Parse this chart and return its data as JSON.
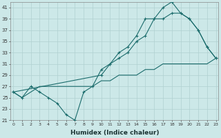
{
  "xlabel": "Humidex (Indice chaleur)",
  "background_color": "#cce8e8",
  "grid_color": "#b0d0d0",
  "line_color": "#1a6b6b",
  "xlim": [
    0,
    23
  ],
  "ylim": [
    21,
    42
  ],
  "xticks": [
    0,
    1,
    2,
    3,
    4,
    5,
    6,
    7,
    8,
    9,
    10,
    11,
    12,
    13,
    14,
    15,
    16,
    17,
    18,
    19,
    20,
    21,
    22,
    23
  ],
  "yticks": [
    21,
    23,
    25,
    27,
    29,
    31,
    33,
    35,
    37,
    39,
    41
  ],
  "curve_wavy_x": [
    0,
    1,
    2,
    3,
    4,
    5,
    6,
    7,
    8,
    9,
    10,
    11,
    12,
    13,
    14,
    15,
    16,
    17,
    18,
    19,
    20,
    21,
    22,
    23
  ],
  "curve_wavy_y": [
    26,
    25,
    27,
    26,
    25,
    24,
    22,
    21,
    26,
    27,
    30,
    31,
    33,
    34,
    36,
    39,
    39,
    41,
    42,
    40,
    39,
    37,
    34,
    32
  ],
  "curve_smooth_x": [
    0,
    10,
    11,
    12,
    13,
    14,
    15,
    16,
    17,
    18,
    19,
    20,
    21,
    22,
    23
  ],
  "curve_smooth_y": [
    26,
    29,
    31,
    32,
    33,
    35,
    36,
    39,
    39,
    40,
    40,
    39,
    37,
    34,
    32
  ],
  "curve_line_x": [
    0,
    1,
    2,
    3,
    4,
    5,
    6,
    7,
    8,
    9,
    10,
    11,
    12,
    13,
    14,
    15,
    16,
    17,
    18,
    19,
    20,
    21,
    22,
    23
  ],
  "curve_line_y": [
    26,
    25,
    26,
    27,
    27,
    27,
    27,
    27,
    27,
    27,
    28,
    28,
    29,
    29,
    29,
    30,
    30,
    31,
    31,
    31,
    31,
    31,
    31,
    32
  ]
}
